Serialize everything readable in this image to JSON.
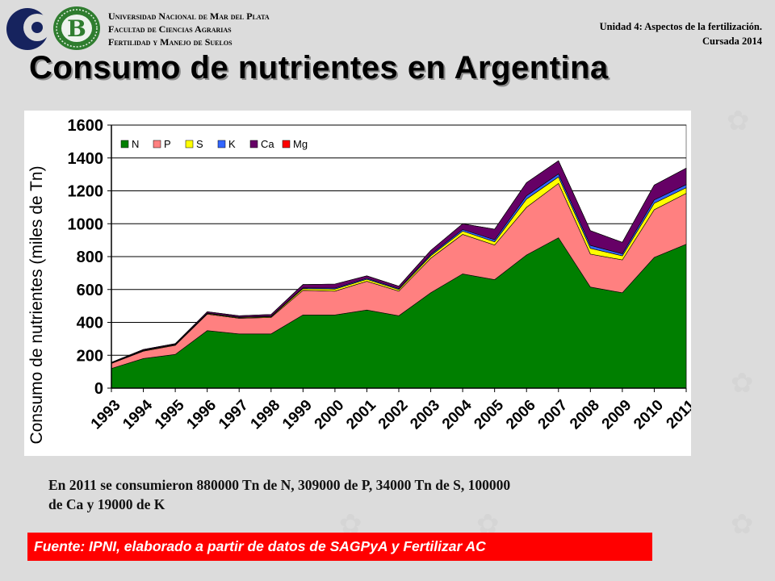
{
  "header": {
    "university_lines": [
      "Universidad Nacional de Mar del Plata",
      "Facultad de Ciencias Agrarias",
      "Fertilidad y Manejo de Suelos"
    ],
    "unit_title": "Unidad 4: Aspectos de la fertilización.",
    "course": "Cursada 2014",
    "logo_left": "crescent-c-logo",
    "logo_right": "green-seal-b-logo",
    "seal_letter": "B"
  },
  "slide": {
    "title": "Consumo de nutrientes en Argentina"
  },
  "caption": {
    "line1": "En 2011 se consumieron 880000 Tn de N, 309000 de P, 34000 Tn de S, 100000",
    "line2": "de Ca y 19000 de K"
  },
  "source": {
    "text": "Fuente: IPNI, elaborado a partir de datos de SAGPyA y Fertilizar AC"
  },
  "colors": {
    "background": "#dcdcdc",
    "source_bar": "#ff0000",
    "chart_bg": "#ffffff"
  },
  "chart_data": {
    "type": "area",
    "stacked": true,
    "title": "",
    "xlabel": "",
    "ylabel": "Consumo de nutrientes (miles de Tn)",
    "ylim": [
      0,
      1600
    ],
    "yticks": [
      0,
      200,
      400,
      600,
      800,
      1000,
      1200,
      1400,
      1600
    ],
    "grid": "horizontal",
    "legend_position": "top-left",
    "categories": [
      "1993",
      "1994",
      "1995",
      "1996",
      "1997",
      "1998",
      "1999",
      "2000",
      "2001",
      "2002",
      "2003",
      "2004",
      "2005",
      "2006",
      "2007",
      "2008",
      "2009",
      "2010",
      "2011"
    ],
    "series": [
      {
        "name": "N",
        "color": "#007f00",
        "values": [
          120,
          180,
          205,
          350,
          330,
          330,
          445,
          445,
          475,
          440,
          580,
          695,
          660,
          810,
          915,
          615,
          580,
          795,
          875
        ]
      },
      {
        "name": "P",
        "color": "#ff8080",
        "values": [
          30,
          45,
          55,
          100,
          95,
          100,
          150,
          145,
          175,
          150,
          210,
          240,
          210,
          290,
          330,
          200,
          200,
          290,
          310
        ]
      },
      {
        "name": "S",
        "color": "#ffff00",
        "values": [
          2,
          3,
          3,
          4,
          4,
          5,
          10,
          12,
          12,
          10,
          15,
          20,
          20,
          50,
          40,
          35,
          25,
          40,
          34
        ]
      },
      {
        "name": "K",
        "color": "#3366ff",
        "values": [
          2,
          2,
          3,
          3,
          3,
          3,
          5,
          6,
          6,
          5,
          8,
          10,
          12,
          20,
          18,
          18,
          12,
          20,
          19
        ]
      },
      {
        "name": "Ca",
        "color": "#660066",
        "values": [
          3,
          5,
          5,
          8,
          8,
          10,
          20,
          25,
          15,
          15,
          25,
          35,
          65,
          80,
          80,
          90,
          70,
          90,
          100
        ]
      },
      {
        "name": "Mg",
        "color": "#ff0000",
        "values": [
          0,
          0,
          0,
          0,
          0,
          0,
          0,
          0,
          0,
          0,
          0,
          0,
          0,
          0,
          0,
          0,
          0,
          0,
          0
        ]
      }
    ]
  }
}
